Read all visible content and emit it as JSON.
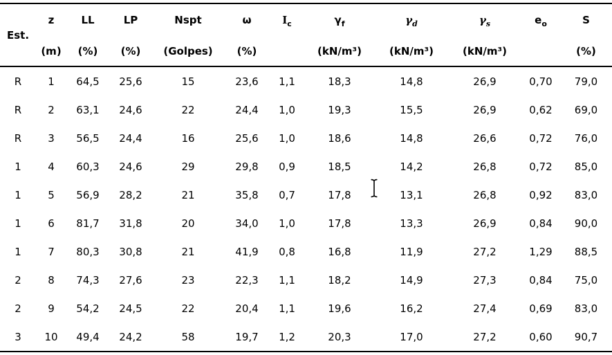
{
  "table": {
    "columns": [
      {
        "id": "est",
        "label": "Est.",
        "sub": "",
        "unit": ""
      },
      {
        "id": "z",
        "label": "z",
        "sub": "",
        "unit": "(m)"
      },
      {
        "id": "ll",
        "label": "LL",
        "sub": "",
        "unit": "(%)"
      },
      {
        "id": "lp",
        "label": "LP",
        "sub": "",
        "unit": "(%)"
      },
      {
        "id": "nspt",
        "label": "Nspt",
        "sub": "",
        "unit": "(Golpes)"
      },
      {
        "id": "omega",
        "label": "ω",
        "sub": "",
        "unit": "(%)"
      },
      {
        "id": "ic",
        "label": "I",
        "sub": "c",
        "unit": ""
      },
      {
        "id": "gamma-f",
        "label": "γ",
        "sub": "f",
        "unit": "(kN/m³)"
      },
      {
        "id": "gamma-d",
        "label": "γ",
        "sub": "d",
        "unit": "(kN/m³)"
      },
      {
        "id": "gamma-s",
        "label": "γ",
        "sub": "s",
        "unit": "(kN/m³)"
      },
      {
        "id": "e0",
        "label": "e",
        "sub": "o",
        "unit": ""
      },
      {
        "id": "s",
        "label": "S",
        "sub": "",
        "unit": "(%)"
      }
    ],
    "rows": [
      [
        "R",
        "1",
        "64,5",
        "25,6",
        "15",
        "23,6",
        "1,1",
        "18,3",
        "14,8",
        "26,9",
        "0,70",
        "79,0"
      ],
      [
        "R",
        "2",
        "63,1",
        "24,6",
        "22",
        "24,4",
        "1,0",
        "19,3",
        "15,5",
        "26,9",
        "0,62",
        "69,0"
      ],
      [
        "R",
        "3",
        "56,5",
        "24,4",
        "16",
        "25,6",
        "1,0",
        "18,6",
        "14,8",
        "26,6",
        "0,72",
        "76,0"
      ],
      [
        "1",
        "4",
        "60,3",
        "24,6",
        "29",
        "29,8",
        "0,9",
        "18,5",
        "14,2",
        "26,8",
        "0,72",
        "85,0"
      ],
      [
        "1",
        "5",
        "56,9",
        "28,2",
        "21",
        "35,8",
        "0,7",
        "17,8",
        "13,1",
        "26,8",
        "0,92",
        "83,0"
      ],
      [
        "1",
        "6",
        "81,7",
        "31,8",
        "20",
        "34,0",
        "1,0",
        "17,8",
        "13,3",
        "26,9",
        "0,84",
        "90,0"
      ],
      [
        "1",
        "7",
        "80,3",
        "30,8",
        "21",
        "41,9",
        "0,8",
        "16,8",
        "11,9",
        "27,2",
        "1,29",
        "88,5"
      ],
      [
        "2",
        "8",
        "74,3",
        "27,6",
        "23",
        "22,3",
        "1,1",
        "18,2",
        "14,9",
        "27,3",
        "0,84",
        "75,0"
      ],
      [
        "2",
        "9",
        "54,2",
        "24,5",
        "22",
        "20,4",
        "1,1",
        "19,6",
        "16,2",
        "27,4",
        "0,69",
        "83,0"
      ],
      [
        "3",
        "10",
        "49,4",
        "24,2",
        "58",
        "19,7",
        "1,2",
        "20,3",
        "17,0",
        "27,2",
        "0,60",
        "90,7"
      ]
    ]
  },
  "colors": {
    "text": "#000000",
    "background": "#ffffff",
    "border": "#000000"
  },
  "cursor": {
    "icon": "text-ibeam"
  }
}
